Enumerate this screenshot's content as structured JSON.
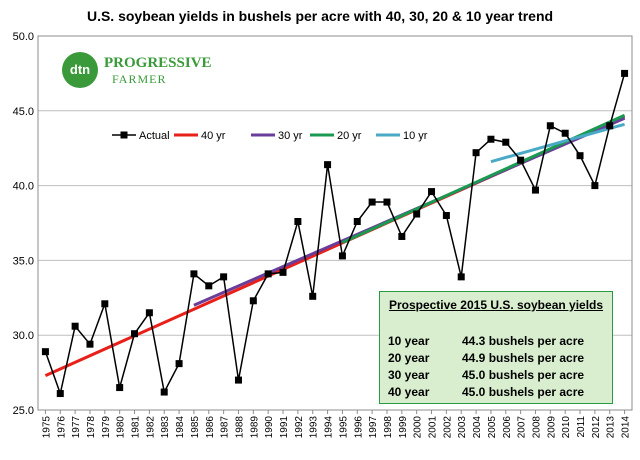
{
  "chart_data": {
    "type": "line",
    "title": "U.S. soybean yields in bushels per acre with 40, 30, 20 & 10 year trend",
    "xlabel": "",
    "ylabel": "",
    "ylim": [
      25.0,
      50.0
    ],
    "y_ticks": [
      "25.0",
      "30.0",
      "35.0",
      "40.0",
      "45.0",
      "50.0"
    ],
    "grid": "horizontal",
    "legend_position": "upper-left",
    "categories": [
      "1975",
      "1976",
      "1977",
      "1978",
      "1979",
      "1980",
      "1981",
      "1982",
      "1983",
      "1984",
      "1985",
      "1986",
      "1987",
      "1988",
      "1989",
      "1990",
      "1991",
      "1992",
      "1993",
      "1994",
      "1995",
      "1996",
      "1997",
      "1998",
      "1999",
      "2000",
      "2001",
      "2002",
      "2003",
      "2004",
      "2005",
      "2006",
      "2007",
      "2008",
      "2009",
      "2010",
      "2011",
      "2012",
      "2013",
      "2014"
    ],
    "series": [
      {
        "name": "Actual",
        "color": "#000000",
        "marker": "square",
        "values": [
          28.9,
          26.1,
          30.6,
          29.4,
          32.1,
          26.5,
          30.1,
          31.5,
          26.2,
          28.1,
          34.1,
          33.3,
          33.9,
          27.0,
          32.3,
          34.1,
          34.2,
          37.6,
          32.6,
          41.4,
          35.3,
          37.6,
          38.9,
          38.9,
          36.6,
          38.1,
          39.6,
          38.0,
          33.9,
          42.2,
          43.1,
          42.9,
          41.7,
          39.7,
          44.0,
          43.5,
          42.0,
          40.0,
          44.0,
          47.5
        ]
      },
      {
        "name": "40 yr",
        "color": "#e8201a",
        "x_start": "1975",
        "x_end": "2014",
        "y_start": 27.3,
        "y_end": 44.6
      },
      {
        "name": "30 yr",
        "color": "#6a3d9a",
        "x_start": "1985",
        "x_end": "2014",
        "y_start": 32.0,
        "y_end": 44.5
      },
      {
        "name": "20 yr",
        "color": "#1a9a50",
        "x_start": "1995",
        "x_end": "2014",
        "y_start": 36.2,
        "y_end": 44.7
      },
      {
        "name": "10 yr",
        "color": "#4aaac6",
        "x_start": "2005",
        "x_end": "2014",
        "y_start": 41.6,
        "y_end": 44.1
      }
    ]
  },
  "logo": {
    "mark": "dtn",
    "line1": "PROGRESSIVE",
    "line2": "FARMER"
  },
  "info_box": {
    "title": "Prospective 2015 U.S. soybean yields",
    "rows": [
      {
        "period": "10 year",
        "value": "44.3 bushels per acre"
      },
      {
        "period": "20 year",
        "value": "44.9 bushels per acre"
      },
      {
        "period": "30 year",
        "value": "45.0 bushels per acre"
      },
      {
        "period": "40 year",
        "value": "45.0 bushels per acre"
      }
    ]
  }
}
